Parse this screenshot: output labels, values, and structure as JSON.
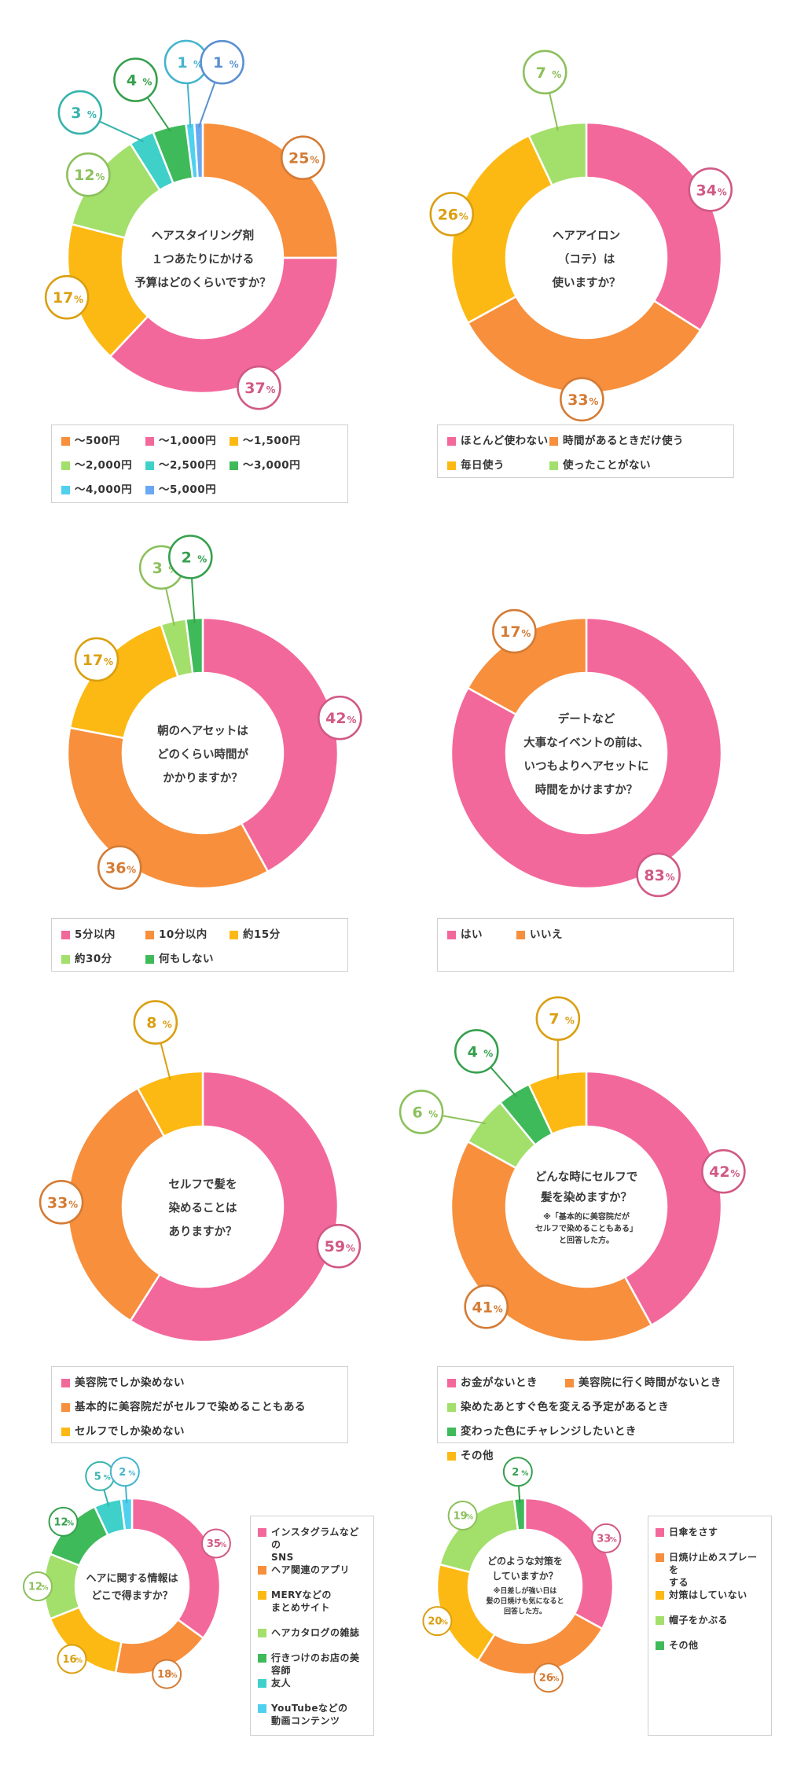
{
  "chart_data": [
    {
      "type": "pie",
      "title": "ヘアスタイリング剤\n１つあたりにかける\n予算はどのくらいですか？",
      "categories": [
        "〜500円",
        "〜1,000円",
        "〜1,500円",
        "〜2,000円",
        "〜2,500円",
        "〜3,000円",
        "〜4,000円",
        "〜5,000円"
      ],
      "values": [
        25,
        37,
        17,
        12,
        3,
        4,
        1,
        1
      ],
      "value_labels": [
        "25",
        "37",
        "17",
        "12",
        "3",
        "4",
        "1",
        "1"
      ],
      "colors": [
        "#f78f3c",
        "#f3689b",
        "#fdb913",
        "#a3df6b",
        "#3fd0c9",
        "#3fba5a",
        "#4fd1ee",
        "#6aa8f3"
      ],
      "legend_placement": "bottom"
    },
    {
      "type": "pie",
      "title": "ヘアアイロン\n（コテ）は\n使いますか？",
      "categories": [
        "ほとんど使わない",
        "時間があるときだけ使う",
        "毎日使う",
        "使ったことがない"
      ],
      "values": [
        34,
        33,
        26,
        7
      ],
      "value_labels": [
        "34",
        "33",
        "26",
        "7"
      ],
      "colors": [
        "#f3689b",
        "#f78f3c",
        "#fdb913",
        "#a3df6b"
      ],
      "legend_placement": "bottom"
    },
    {
      "type": "pie",
      "title": "朝のヘアセットは\nどのくらい時間が\nかかりますか？",
      "categories": [
        "5分以内",
        "10分以内",
        "約15分",
        "約30分",
        "何もしない"
      ],
      "values": [
        42,
        36,
        17,
        3,
        2
      ],
      "value_labels": [
        "42",
        "36",
        "17",
        "3",
        "2"
      ],
      "colors": [
        "#f3689b",
        "#f78f3c",
        "#fdb913",
        "#a3df6b",
        "#3fba5a"
      ],
      "legend_placement": "bottom"
    },
    {
      "type": "pie",
      "title": "デートなど\n大事なイベントの前は、\nいつもよりヘアセットに\n時間をかけますか？",
      "categories": [
        "はい",
        "いいえ"
      ],
      "values": [
        83,
        17
      ],
      "value_labels": [
        "83",
        "17"
      ],
      "colors": [
        "#f3689b",
        "#f78f3c"
      ],
      "legend_placement": "bottom"
    },
    {
      "type": "pie",
      "title": "セルフで髪を\n染めることは\nありますか？",
      "categories": [
        "美容院でしか染めない",
        "基本的に美容院だがセルフで染めることもある",
        "セルフでしか染めない"
      ],
      "values": [
        59,
        33,
        8
      ],
      "value_labels": [
        "59",
        "33",
        "8"
      ],
      "colors": [
        "#f3689b",
        "#f78f3c",
        "#fdb913"
      ],
      "legend_placement": "bottom"
    },
    {
      "type": "pie",
      "title": "どんな時にセルフで\n髪を染めますか？",
      "note": "※「基本的に美容院だが\nセルフで染めることもある」\nと回答した方。",
      "categories": [
        "お金がないとき",
        "美容院に行く時間がないとき",
        "染めたあとすぐ色を変える予定があるとき",
        "変わった色にチャレンジしたいとき",
        "その他"
      ],
      "values": [
        42,
        41,
        6,
        4,
        7
      ],
      "value_labels": [
        "42",
        "41",
        "6",
        "4",
        "7"
      ],
      "colors": [
        "#f3689b",
        "#f78f3c",
        "#a3df6b",
        "#3fba5a",
        "#fdb913"
      ],
      "legend_placement": "bottom"
    },
    {
      "type": "pie",
      "title": "ヘアに関する情報は\nどこで得ますか？",
      "categories": [
        "インスタグラムなどの\nSNS",
        "ヘア関連のアプリ",
        "MERYなどの\nまとめサイト",
        "ヘアカタログの雑誌",
        "行きつけのお店の美容師",
        "友人",
        "YouTubeなどの\n動画コンテンツ"
      ],
      "values": [
        35,
        18,
        16,
        12,
        12,
        5,
        2
      ],
      "value_labels": [
        "35",
        "18",
        "16",
        "12",
        "12",
        "5",
        "2"
      ],
      "colors": [
        "#f3689b",
        "#f78f3c",
        "#fdb913",
        "#a3df6b",
        "#3fba5a",
        "#3fd0c9",
        "#4fd1ee"
      ],
      "legend_placement": "right"
    },
    {
      "type": "pie",
      "title": "どのような対策を\nしていますか？",
      "note": "※日差しが強い日は\n髪の日焼けも気になると\n回答した方。",
      "categories": [
        "日傘をさす",
        "日焼け止めスプレーを\nする",
        "対策はしていない",
        "帽子をかぶる",
        "その他"
      ],
      "values": [
        33,
        26,
        20,
        19,
        2
      ],
      "value_labels": [
        "33",
        "26",
        "20",
        "19",
        "2"
      ],
      "colors": [
        "#f3689b",
        "#f78f3c",
        "#fdb913",
        "#a3df6b",
        "#3fba5a"
      ],
      "legend_placement": "right"
    }
  ]
}
